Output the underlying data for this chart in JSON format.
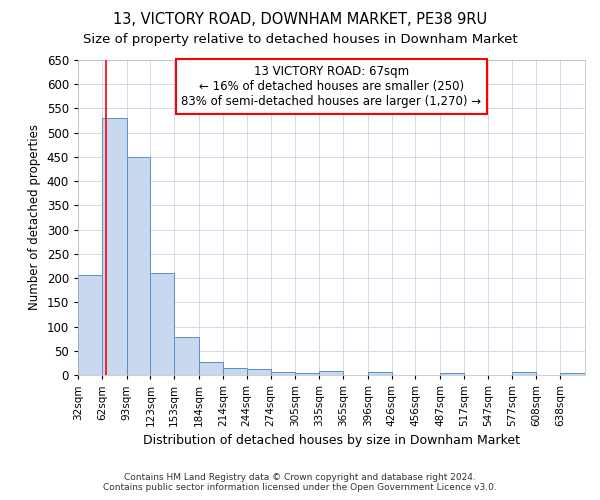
{
  "title": "13, VICTORY ROAD, DOWNHAM MARKET, PE38 9RU",
  "subtitle": "Size of property relative to detached houses in Downham Market",
  "xlabel": "Distribution of detached houses by size in Downham Market",
  "ylabel": "Number of detached properties",
  "footer_line1": "Contains HM Land Registry data © Crown copyright and database right 2024.",
  "footer_line2": "Contains public sector information licensed under the Open Government Licence v3.0.",
  "annotation_line1": "13 VICTORY ROAD: 67sqm",
  "annotation_line2": "← 16% of detached houses are smaller (250)",
  "annotation_line3": "83% of semi-detached houses are larger (1,270) →",
  "bar_color": "#c8d8ee",
  "bar_edge_color": "#5a8ec8",
  "red_line_x": 67,
  "categories": [
    "32sqm",
    "62sqm",
    "93sqm",
    "123sqm",
    "153sqm",
    "184sqm",
    "214sqm",
    "244sqm",
    "274sqm",
    "305sqm",
    "335sqm",
    "365sqm",
    "396sqm",
    "426sqm",
    "456sqm",
    "487sqm",
    "517sqm",
    "547sqm",
    "577sqm",
    "608sqm",
    "638sqm"
  ],
  "bin_edges": [
    32,
    62,
    93,
    123,
    153,
    184,
    214,
    244,
    274,
    305,
    335,
    365,
    396,
    426,
    456,
    487,
    517,
    547,
    577,
    608,
    638,
    669
  ],
  "bar_heights": [
    207,
    530,
    450,
    210,
    78,
    27,
    15,
    12,
    6,
    4,
    9,
    0,
    6,
    0,
    0,
    5,
    0,
    0,
    6,
    0,
    5
  ],
  "ylim": [
    0,
    650
  ],
  "yticks": [
    0,
    50,
    100,
    150,
    200,
    250,
    300,
    350,
    400,
    450,
    500,
    550,
    600,
    650
  ],
  "background_color": "#ffffff",
  "grid_color": "#c8d4e8",
  "title_fontsize": 10.5,
  "subtitle_fontsize": 9.5,
  "annotation_fontsize": 8.5,
  "xlabel_fontsize": 9,
  "ylabel_fontsize": 8.5,
  "footer_fontsize": 6.5
}
